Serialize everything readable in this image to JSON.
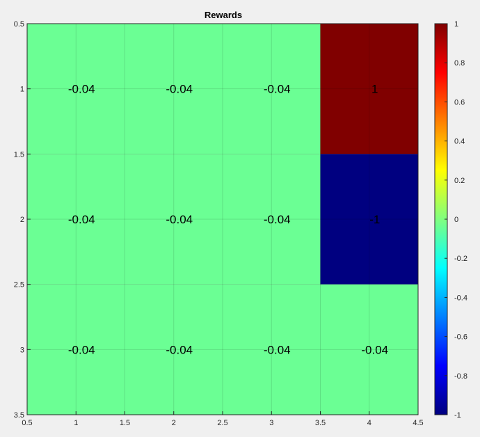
{
  "chart_data": {
    "type": "heatmap",
    "title": "Rewards",
    "xlabel": "",
    "ylabel": "",
    "xlim": [
      0.5,
      4.5
    ],
    "ylim": [
      0.5,
      3.5
    ],
    "y_direction": "reverse",
    "grid": true,
    "x_ticks": [
      "0.5",
      "1",
      "1.5",
      "2",
      "2.5",
      "3",
      "3.5",
      "4",
      "4.5"
    ],
    "y_ticks": [
      "0.5",
      "1",
      "1.5",
      "2",
      "2.5",
      "3",
      "3.5"
    ],
    "values": [
      [
        -0.04,
        -0.04,
        -0.04,
        1
      ],
      [
        -0.04,
        -0.04,
        -0.04,
        -1
      ],
      [
        -0.04,
        -0.04,
        -0.04,
        -0.04
      ]
    ],
    "cell_labels": [
      [
        "-0.04",
        "-0.04",
        "-0.04",
        "1"
      ],
      [
        "-0.04",
        "-0.04",
        "-0.04",
        "-1"
      ],
      [
        "-0.04",
        "-0.04",
        "-0.04",
        "-0.04"
      ]
    ],
    "colormap": "jet",
    "clim": [
      -1,
      1
    ],
    "colorbar": {
      "placement": "right",
      "ticks": [
        "-1",
        "-0.8",
        "-0.6",
        "-0.4",
        "-0.2",
        "0",
        "0.2",
        "0.4",
        "0.6",
        "0.8",
        "1"
      ]
    }
  }
}
